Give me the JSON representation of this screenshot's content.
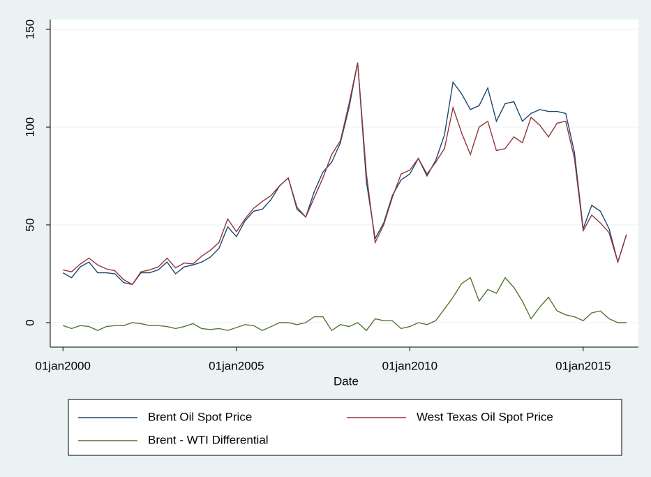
{
  "chart_data": {
    "type": "line",
    "x_label": "Date",
    "x": [
      "2000-01-01",
      "2000-04-01",
      "2000-07-01",
      "2000-10-01",
      "2001-01-01",
      "2001-04-01",
      "2001-07-01",
      "2001-10-01",
      "2002-01-01",
      "2002-04-01",
      "2002-07-01",
      "2002-10-01",
      "2003-01-01",
      "2003-04-01",
      "2003-07-01",
      "2003-10-01",
      "2004-01-01",
      "2004-04-01",
      "2004-07-01",
      "2004-10-01",
      "2005-01-01",
      "2005-04-01",
      "2005-07-01",
      "2005-10-01",
      "2006-01-01",
      "2006-04-01",
      "2006-07-01",
      "2006-10-01",
      "2007-01-01",
      "2007-04-01",
      "2007-07-01",
      "2007-10-01",
      "2008-01-01",
      "2008-04-01",
      "2008-07-01",
      "2008-10-01",
      "2009-01-01",
      "2009-04-01",
      "2009-07-01",
      "2009-10-01",
      "2010-01-01",
      "2010-04-01",
      "2010-07-01",
      "2010-10-01",
      "2011-01-01",
      "2011-04-01",
      "2011-07-01",
      "2011-10-01",
      "2012-01-01",
      "2012-04-01",
      "2012-07-01",
      "2012-10-01",
      "2013-01-01",
      "2013-04-01",
      "2013-07-01",
      "2013-10-01",
      "2014-01-01",
      "2014-04-01",
      "2014-07-01",
      "2014-10-01",
      "2015-01-01",
      "2015-04-01",
      "2015-07-01",
      "2015-10-01",
      "2016-01-01",
      "2016-04-01"
    ],
    "series": [
      {
        "name": "Brent Oil Spot Price",
        "color": "#1a476f",
        "values": [
          25.5,
          23,
          28.5,
          31,
          25.5,
          25.5,
          25,
          20.5,
          19.5,
          25.5,
          25.5,
          27,
          31,
          25,
          28.5,
          29.5,
          31,
          33.5,
          38,
          49,
          44,
          52,
          57,
          58,
          63,
          70,
          74,
          58,
          54,
          67,
          77,
          82,
          92,
          110,
          133,
          72,
          43,
          51,
          65,
          73,
          76,
          84,
          75,
          83,
          96,
          123,
          117,
          109,
          111,
          120,
          103,
          112,
          113,
          103,
          107,
          109,
          108,
          108,
          107,
          87,
          48,
          60,
          57,
          48,
          31,
          45
        ]
      },
      {
        "name": "West Texas Oil Spot Price",
        "color": "#90353b",
        "values": [
          27,
          26,
          30,
          33,
          29.5,
          27.5,
          26.5,
          22,
          19.5,
          26,
          27,
          28.5,
          33,
          28,
          30.5,
          30,
          34,
          37,
          41,
          53,
          46.5,
          53,
          58.5,
          62,
          65,
          70,
          74,
          59,
          54,
          64,
          74,
          86,
          93,
          112,
          133,
          76,
          41,
          50,
          64,
          76,
          78,
          84,
          76,
          82,
          89,
          110,
          97,
          86,
          100,
          103,
          88,
          89,
          95,
          92,
          105,
          101,
          95,
          102,
          103,
          84,
          47,
          55,
          51,
          46,
          31,
          45
        ]
      },
      {
        "name": "Brent - WTI Differential",
        "color": "#55752f",
        "values": [
          -1.5,
          -3,
          -1.5,
          -2,
          -4,
          -2,
          -1.5,
          -1.5,
          0,
          -0.5,
          -1.5,
          -1.5,
          -2,
          -3,
          -2,
          -0.5,
          -3,
          -3.5,
          -3,
          -4,
          -2.5,
          -1,
          -1.5,
          -4,
          -2,
          0,
          0,
          -1,
          0,
          3,
          3,
          -4,
          -1,
          -2,
          0,
          -4,
          2,
          1,
          1,
          -3,
          -2,
          0,
          -1,
          1,
          7,
          13,
          20,
          23,
          11,
          17,
          15,
          23,
          18,
          11,
          2,
          8,
          13,
          6,
          4,
          3,
          1,
          5,
          6,
          2,
          0,
          0
        ]
      }
    ],
    "xlim": [
      "1999-08-20",
      "2016-08-05"
    ],
    "xticks": [
      {
        "value": "2000-01-01",
        "label": "01jan2000"
      },
      {
        "value": "2005-01-01",
        "label": "01jan2005"
      },
      {
        "value": "2010-01-01",
        "label": "01jan2010"
      },
      {
        "value": "2015-01-01",
        "label": "01jan2015"
      }
    ],
    "ylim": [
      -12.5,
      155
    ],
    "yticks": [
      0,
      50,
      100,
      150
    ],
    "grid": true,
    "legend": "bottom"
  }
}
